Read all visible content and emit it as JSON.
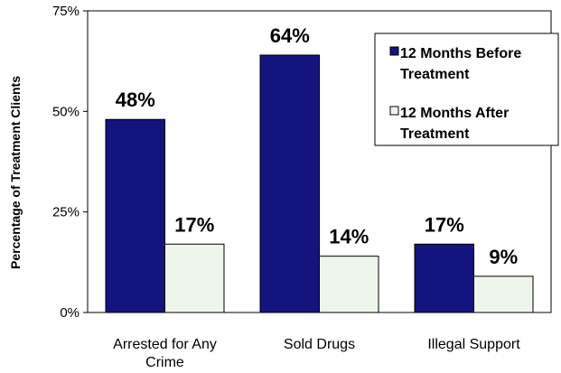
{
  "chart_data": {
    "type": "bar",
    "title": "",
    "xlabel": "",
    "ylabel": "Percentage of Treatment Clients",
    "categories": [
      "Arrested for Any Crime",
      "Sold Drugs",
      "Illegal Support"
    ],
    "series": [
      {
        "name": "12 Months Before Treatment",
        "values": [
          48,
          64,
          17
        ],
        "labels": [
          "48%",
          "64%",
          "17%"
        ],
        "color": "#14147f"
      },
      {
        "name": "12 Months After Treatment",
        "values": [
          17,
          14,
          9
        ],
        "labels": [
          "17%",
          "14%",
          "9%"
        ],
        "color": "#eef6ec"
      }
    ],
    "ylim": [
      0,
      75
    ],
    "yticks": [
      0,
      25,
      50,
      75
    ],
    "ytick_labels": [
      "0%",
      "25%",
      "50%",
      "75%"
    ],
    "grid": false,
    "legend": "top-right"
  }
}
